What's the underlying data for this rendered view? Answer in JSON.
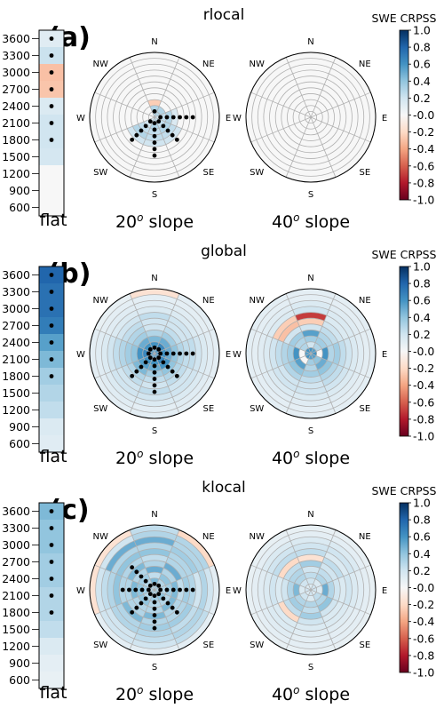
{
  "colorbar": {
    "label": "SWE CRPSS",
    "ticks": [
      "1.0",
      "0.8",
      "0.6",
      "0.4",
      "0.2",
      "-0.0",
      "-0.2",
      "-0.4",
      "-0.6",
      "-0.8",
      "-1.0"
    ],
    "stops": [
      "#67001f",
      "#b2182b",
      "#d6604d",
      "#f4a582",
      "#fddbc7",
      "#f7f7f7",
      "#d1e5f0",
      "#92c5de",
      "#4393c3",
      "#2166ac",
      "#053061"
    ]
  },
  "directions": [
    "N",
    "NE",
    "E",
    "SE",
    "S",
    "SW",
    "W",
    "NW"
  ],
  "elevation_ticks": [
    "3600",
    "3300",
    "3000",
    "2700",
    "2400",
    "2100",
    "1800",
    "1500",
    "1200",
    "900",
    "600"
  ],
  "flat_label": "flat",
  "slope_labels": [
    {
      "deg": "20",
      "sup": "o",
      "word": " slope"
    },
    {
      "deg": "40",
      "sup": "o",
      "word": " slope"
    }
  ],
  "chart_data": [
    {
      "type": "heatmap",
      "panel_label": "(a)",
      "title": "rlocal",
      "colorbar_label": "SWE CRPSS",
      "value_range": [
        -1.0,
        1.0
      ],
      "flat_values": [
        0.12,
        0.22,
        -0.3,
        -0.28,
        0.15,
        0.2,
        0.2,
        0.18,
        0.0,
        0.0,
        0.0
      ],
      "flat_dots": [
        true,
        true,
        true,
        true,
        true,
        true,
        true,
        false,
        false,
        false,
        false
      ],
      "slope20_values": [
        [
          0.3,
          0.3,
          -0.25,
          0,
          0,
          0,
          0,
          0,
          0,
          0,
          0
        ],
        [
          0.3,
          0.3,
          0,
          0,
          0,
          0,
          0,
          0,
          0,
          0,
          0
        ],
        [
          0.2,
          0.25,
          0.3,
          0.15,
          0,
          0,
          0,
          0,
          0,
          0,
          0
        ],
        [
          0.25,
          0.25,
          0.3,
          0.25,
          0.2,
          0,
          0,
          0,
          0,
          0,
          0
        ],
        [
          0.25,
          0.3,
          0.25,
          0.25,
          0.2,
          0,
          0,
          0,
          0,
          0,
          0
        ],
        [
          0.15,
          0.2,
          0.25,
          0.3,
          0.2,
          0,
          0,
          0,
          0,
          0,
          0
        ],
        [
          0,
          0,
          0,
          0,
          0,
          0,
          0,
          0,
          0,
          0,
          0
        ],
        [
          0,
          0,
          0,
          0,
          0,
          0,
          0,
          0,
          0,
          0,
          0
        ]
      ],
      "slope20_dots": [
        [
          true,
          false,
          false,
          false,
          false,
          false
        ],
        [
          false,
          false,
          false,
          false,
          false,
          false
        ],
        [
          true,
          true,
          true,
          true,
          true,
          true
        ],
        [
          true,
          true,
          true,
          true,
          true,
          false
        ],
        [
          true,
          true,
          true,
          true,
          true,
          true
        ],
        [
          true,
          true,
          true,
          true,
          true,
          false
        ],
        [
          false,
          false,
          false,
          false,
          false,
          false
        ],
        [
          false,
          false,
          false,
          false,
          false,
          false
        ]
      ],
      "slope40_values": [
        [
          0,
          0,
          0,
          0,
          0,
          0,
          0,
          0,
          0,
          0,
          0
        ],
        [
          0,
          0,
          0,
          0,
          0,
          0,
          0,
          0,
          0,
          0,
          0
        ],
        [
          0,
          0,
          0,
          0,
          0,
          0,
          0,
          0,
          0,
          0,
          0
        ],
        [
          0,
          0,
          0,
          0,
          0,
          0,
          0,
          0,
          0,
          0,
          0
        ],
        [
          0,
          0,
          0,
          0,
          0,
          0,
          0,
          0,
          0,
          0,
          0
        ],
        [
          0,
          0,
          0,
          0,
          0,
          0,
          0,
          0,
          0,
          0,
          0
        ],
        [
          0,
          0,
          0,
          0,
          0,
          0,
          0,
          0,
          0,
          0,
          0
        ],
        [
          0,
          0,
          0,
          0,
          0,
          0,
          0,
          0,
          0,
          0,
          0
        ]
      ]
    },
    {
      "type": "heatmap",
      "panel_label": "(b)",
      "title": "global",
      "colorbar_label": "SWE CRPSS",
      "value_range": [
        -1.0,
        1.0
      ],
      "flat_values": [
        0.8,
        0.75,
        0.75,
        0.7,
        0.55,
        0.45,
        0.35,
        0.3,
        0.25,
        0.15,
        0.12
      ],
      "flat_dots": [
        true,
        true,
        true,
        true,
        true,
        true,
        true,
        false,
        false,
        false,
        false
      ],
      "slope20_values": [
        [
          0.5,
          0.6,
          0.45,
          0.3,
          0.2,
          0.2,
          0.25,
          0.15,
          0.12,
          0.1,
          -0.15
        ],
        [
          0.6,
          0.65,
          0.5,
          0.35,
          0.25,
          0.2,
          0.2,
          0.15,
          0.12,
          0.1,
          0.1
        ],
        [
          0.6,
          0.6,
          0.5,
          0.4,
          0.3,
          0.25,
          0.25,
          0.2,
          0.15,
          0.12,
          0.1
        ],
        [
          0.55,
          0.65,
          0.6,
          0.4,
          0.3,
          0.25,
          0.2,
          0.2,
          0.15,
          0.12,
          0.1
        ],
        [
          0.55,
          0.6,
          0.5,
          0.35,
          0.25,
          0.2,
          0.25,
          0.2,
          0.15,
          0.1,
          0.1
        ],
        [
          0.5,
          0.6,
          0.55,
          0.45,
          0.3,
          0.25,
          0.2,
          0.2,
          0.15,
          0.12,
          0.1
        ],
        [
          0.6,
          0.65,
          0.6,
          0.4,
          0.35,
          0.3,
          0.25,
          0.2,
          0.15,
          0.12,
          0.1
        ],
        [
          0.55,
          0.6,
          0.5,
          0.35,
          0.3,
          0.25,
          0.2,
          0.15,
          0.12,
          0.1,
          0.08
        ]
      ],
      "slope20_dots": [
        [
          true,
          false,
          false,
          false,
          false,
          false
        ],
        [
          true,
          false,
          false,
          false,
          false,
          false
        ],
        [
          true,
          true,
          true,
          true,
          true,
          true
        ],
        [
          true,
          true,
          true,
          true,
          true,
          false
        ],
        [
          true,
          true,
          true,
          true,
          true,
          true
        ],
        [
          true,
          true,
          true,
          true,
          true,
          false
        ],
        [
          true,
          false,
          false,
          false,
          false,
          false
        ],
        [
          true,
          false,
          false,
          false,
          false,
          false
        ]
      ],
      "slope40_values": [
        [
          0.6,
          0.2,
          0.35,
          0.55,
          0.2,
          -0.25,
          -0.7,
          0.2,
          0.15,
          0.1,
          0.1
        ],
        [
          0.55,
          0.3,
          0.35,
          0.3,
          0.25,
          0.2,
          0.15,
          0.15,
          0.12,
          0.1,
          0.1
        ],
        [
          0.6,
          0.0,
          0.6,
          0.3,
          0.35,
          0.25,
          0.2,
          0.15,
          0.12,
          0.1,
          0.1
        ],
        [
          0.55,
          0.4,
          0.5,
          0.4,
          0.3,
          0.25,
          0.2,
          0.15,
          0.12,
          0.1,
          0.1
        ],
        [
          0.55,
          0.35,
          0.3,
          0.35,
          0.25,
          0.2,
          0.2,
          0.15,
          0.12,
          0.1,
          0.1
        ],
        [
          0.6,
          0.0,
          0.55,
          0.4,
          0.3,
          0.2,
          0.2,
          0.15,
          0.12,
          0.1,
          0.1
        ],
        [
          0.55,
          0.0,
          0.6,
          0.35,
          0.3,
          0.25,
          0.2,
          0.15,
          0.12,
          0.1,
          0.1
        ],
        [
          0.6,
          0.3,
          0.3,
          0.35,
          0.2,
          -0.3,
          -0.25,
          0.15,
          0.12,
          0.1,
          0.1
        ]
      ]
    },
    {
      "type": "heatmap",
      "panel_label": "(c)",
      "title": "klocal",
      "colorbar_label": "SWE CRPSS",
      "value_range": [
        -1.0,
        1.0
      ],
      "flat_values": [
        0.45,
        0.4,
        0.4,
        0.35,
        0.35,
        0.3,
        0.3,
        0.25,
        0.15,
        0.1,
        0.08
      ],
      "flat_dots": [
        true,
        true,
        true,
        true,
        true,
        true,
        true,
        false,
        false,
        false,
        false
      ],
      "slope20_values": [
        [
          0.3,
          0.45,
          0.25,
          0.5,
          0.3,
          0.25,
          0.4,
          0.3,
          0.5,
          0.3,
          0.25
        ],
        [
          0.35,
          0.3,
          0.4,
          0.3,
          0.5,
          0.3,
          0.3,
          0.35,
          0.3,
          0.3,
          -0.2
        ],
        [
          0.3,
          0.3,
          0.35,
          0.45,
          0.25,
          0.35,
          0.3,
          0.2,
          0.3,
          0.2,
          0.1
        ],
        [
          0.35,
          0.4,
          0.3,
          0.45,
          0.3,
          0.3,
          0.35,
          0.25,
          0.3,
          0.25,
          0.1
        ],
        [
          0.3,
          0.35,
          0.3,
          0.3,
          0.45,
          0.3,
          0.35,
          0.3,
          0.25,
          0.2,
          0.1
        ],
        [
          0.35,
          0.3,
          0.4,
          0.3,
          0.3,
          0.45,
          0.3,
          0.3,
          0.2,
          0.2,
          0.1
        ],
        [
          0.3,
          0.35,
          0.4,
          0.45,
          0.3,
          0.3,
          0.4,
          0.3,
          0.25,
          0.2,
          -0.15
        ],
        [
          0.3,
          0.3,
          0.35,
          0.3,
          0.45,
          0.3,
          0.4,
          0.3,
          0.5,
          0.2,
          -0.15
        ]
      ],
      "slope20_dots": [
        [
          true,
          false,
          false,
          false,
          false,
          false
        ],
        [
          true,
          false,
          false,
          false,
          false,
          false
        ],
        [
          true,
          true,
          true,
          true,
          true,
          true
        ],
        [
          true,
          true,
          true,
          true,
          true,
          false
        ],
        [
          true,
          true,
          true,
          true,
          true,
          true
        ],
        [
          true,
          true,
          true,
          true,
          true,
          false
        ],
        [
          true,
          true,
          true,
          true,
          true,
          false
        ],
        [
          true,
          true,
          true,
          true,
          true,
          false
        ]
      ],
      "slope40_values": [
        [
          0.15,
          0.2,
          0.25,
          0.2,
          0.35,
          -0.15,
          0.25,
          0.2,
          0.15,
          0.1,
          0.08
        ],
        [
          0.2,
          0.15,
          0.3,
          0.25,
          0.2,
          0.25,
          0.15,
          0.2,
          0.15,
          0.1,
          0.08
        ],
        [
          0.2,
          0.15,
          0.5,
          0.3,
          0.2,
          0.15,
          0.2,
          0.15,
          0.12,
          0.1,
          0.08
        ],
        [
          0.15,
          0.25,
          0.3,
          0.4,
          0.2,
          0.15,
          0.15,
          0.12,
          0.1,
          0.1,
          0.08
        ],
        [
          0.2,
          0.15,
          0.3,
          0.25,
          0.35,
          0.2,
          0.15,
          0.12,
          0.1,
          0.1,
          0.08
        ],
        [
          0.15,
          0.2,
          0.3,
          0.35,
          0.25,
          -0.2,
          0.15,
          0.15,
          0.12,
          0.1,
          0.08
        ],
        [
          0.2,
          0.15,
          0.45,
          0.3,
          0.2,
          0.15,
          0.2,
          0.15,
          0.12,
          0.1,
          0.08
        ],
        [
          0.15,
          0.2,
          0.3,
          0.3,
          0.25,
          -0.2,
          0.25,
          0.2,
          0.15,
          0.1,
          0.08
        ]
      ]
    }
  ]
}
